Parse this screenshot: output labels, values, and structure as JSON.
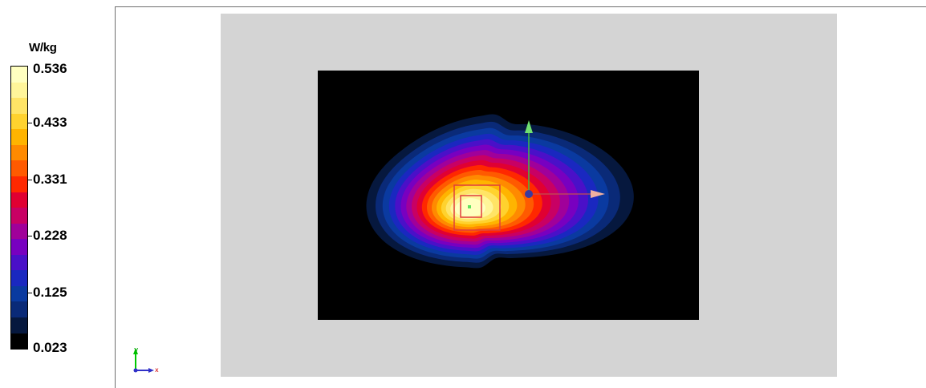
{
  "legend": {
    "unit": "W/kg",
    "labels": [
      "0.536",
      "0.433",
      "0.331",
      "0.228",
      "0.125",
      "0.023"
    ],
    "colors": [
      "#ffffc0",
      "#fff59a",
      "#ffe466",
      "#ffd22e",
      "#ffb400",
      "#ff8a00",
      "#ff5a00",
      "#ff2800",
      "#e00032",
      "#c80064",
      "#a0009a",
      "#7800c0",
      "#4a10c8",
      "#1a28c0",
      "#0a3aa0",
      "#0a2a78",
      "#06183e",
      "#000000"
    ]
  },
  "scene": {
    "background_color": "#d4d4d4",
    "plot_background": "#000000"
  },
  "axes_indicator": {
    "y_label": "y",
    "x_label": "x"
  }
}
